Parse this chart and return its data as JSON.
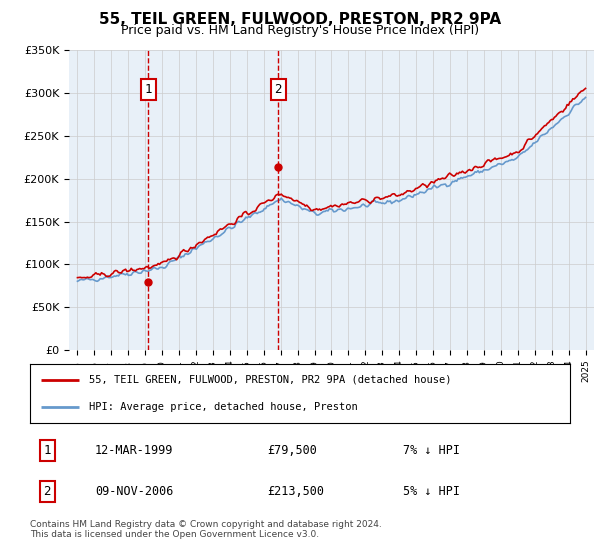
{
  "title": "55, TEIL GREEN, FULWOOD, PRESTON, PR2 9PA",
  "subtitle": "Price paid vs. HM Land Registry's House Price Index (HPI)",
  "legend_line1": "55, TEIL GREEN, FULWOOD, PRESTON, PR2 9PA (detached house)",
  "legend_line2": "HPI: Average price, detached house, Preston",
  "transaction1_date": "12-MAR-1999",
  "transaction1_price": "£79,500",
  "transaction1_hpi": "7% ↓ HPI",
  "transaction2_date": "09-NOV-2006",
  "transaction2_price": "£213,500",
  "transaction2_hpi": "5% ↓ HPI",
  "copyright": "Contains HM Land Registry data © Crown copyright and database right 2024.\nThis data is licensed under the Open Government Licence v3.0.",
  "sale1_year": 1999.19,
  "sale2_year": 2006.86,
  "sale1_price": 79500,
  "sale2_price": 213500,
  "y_min": 0,
  "y_max": 350000,
  "x_min": 1994.5,
  "x_max": 2025.5,
  "background_color": "#e8f0f8",
  "plot_bg_color": "#ffffff",
  "red_line_color": "#cc0000",
  "blue_line_color": "#6699cc",
  "vline_color": "#cc0000",
  "grid_color": "#cccccc"
}
